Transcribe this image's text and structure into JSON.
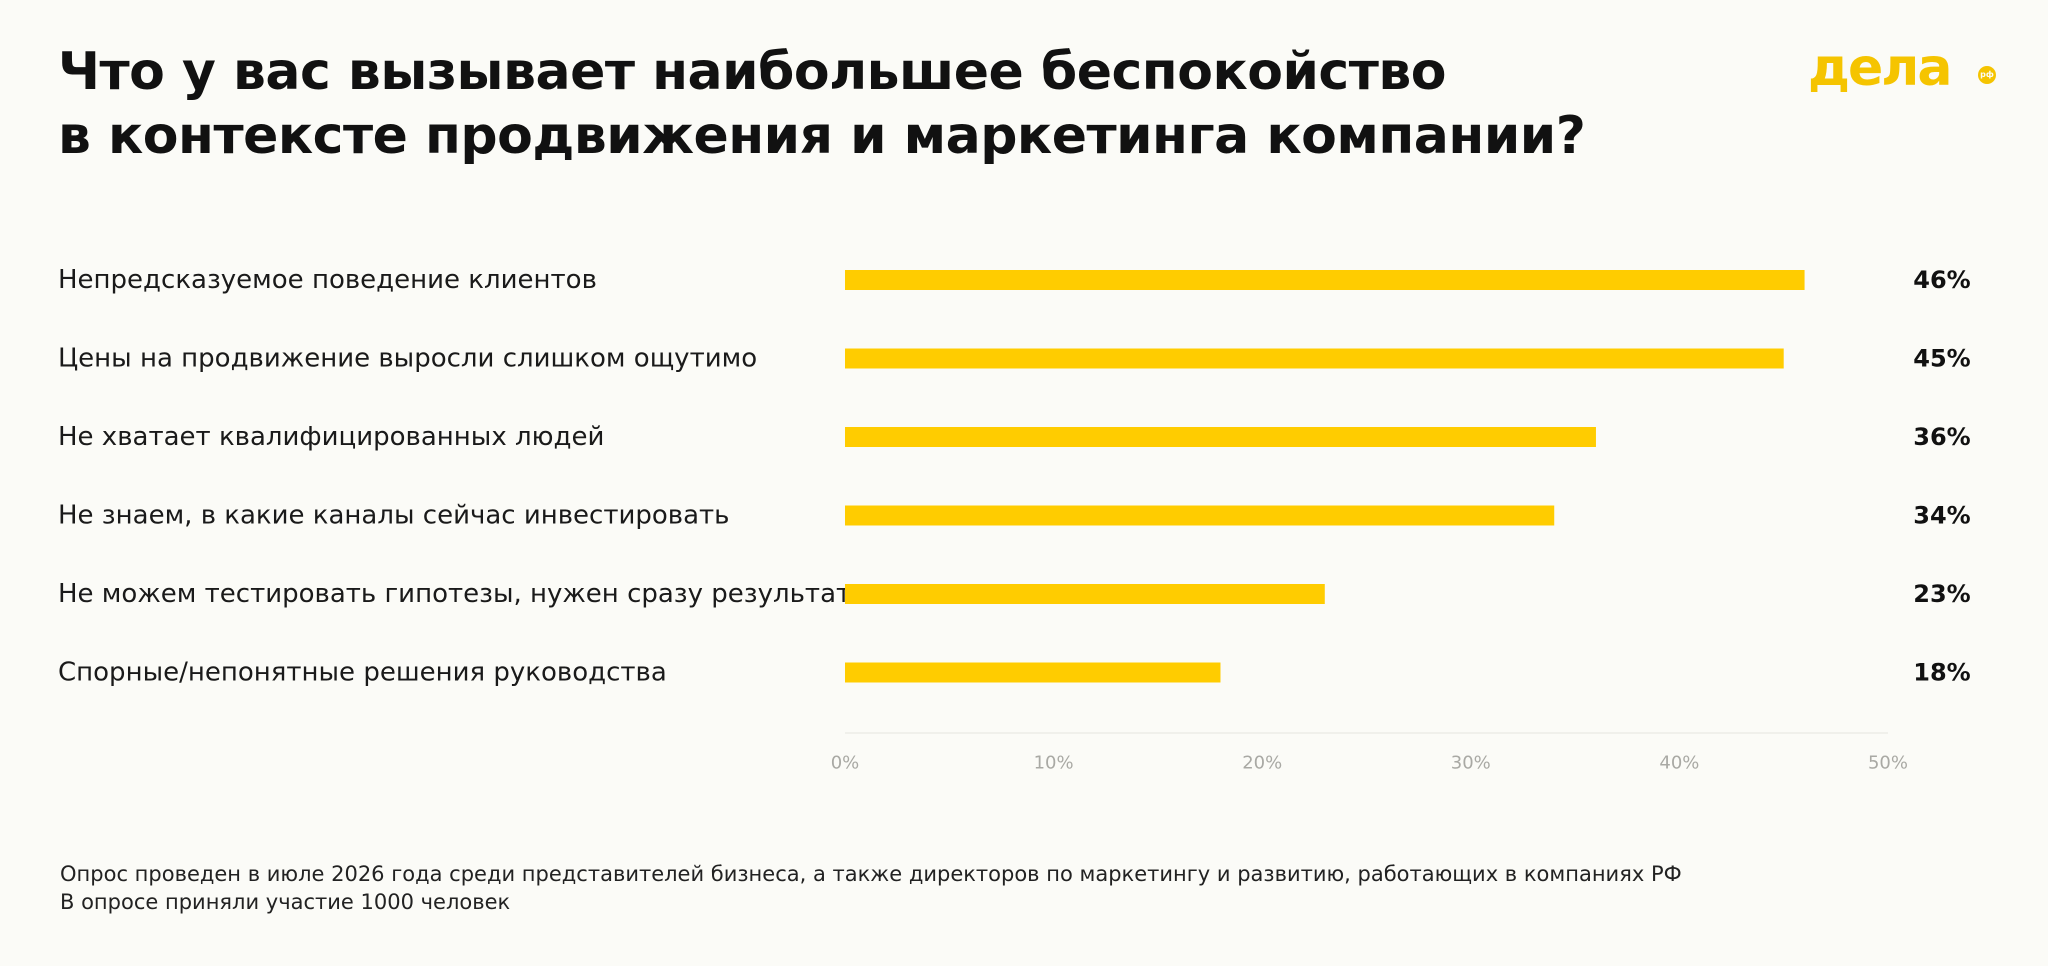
{
  "title": {
    "line1": "Что у вас вызывает наибольшее беспокойство",
    "line2": "в контексте продвижения и маркетинга компании?"
  },
  "logo": {
    "text": "дела",
    "badge": "рф"
  },
  "colors": {
    "bar": "#FFCC00",
    "background": "#FBFBF7",
    "logo": "#F5C400",
    "text": "#111111",
    "tick": "#A9A9A4"
  },
  "chart_data": {
    "type": "bar",
    "orientation": "horizontal",
    "categories": [
      "Непредсказуемое поведение клиентов",
      "Цены на продвижение выросли слишком ощутимо",
      "Не хватает квалифицированных людей",
      "Не знаем, в какие каналы сейчас инвестировать",
      "Не можем тестировать гипотезы, нужен сразу результат",
      "Спорные/непонятные решения руководства"
    ],
    "values": [
      46,
      45,
      36,
      34,
      23,
      18
    ],
    "value_labels": [
      "46%",
      "45%",
      "36%",
      "34%",
      "23%",
      "18%"
    ],
    "xlim": [
      0,
      50
    ],
    "x_ticks": [
      "0%",
      "10%",
      "20%",
      "30%",
      "40%",
      "50%"
    ],
    "grid": false,
    "legend": "none"
  },
  "footnote": {
    "line1": "Опрос проведен в июле 2026 года среди представителей бизнеса, а также директоров по маркетингу и развитию, работающих в компаниях РФ",
    "line2": "В опросе приняли участие 1000 человек"
  }
}
